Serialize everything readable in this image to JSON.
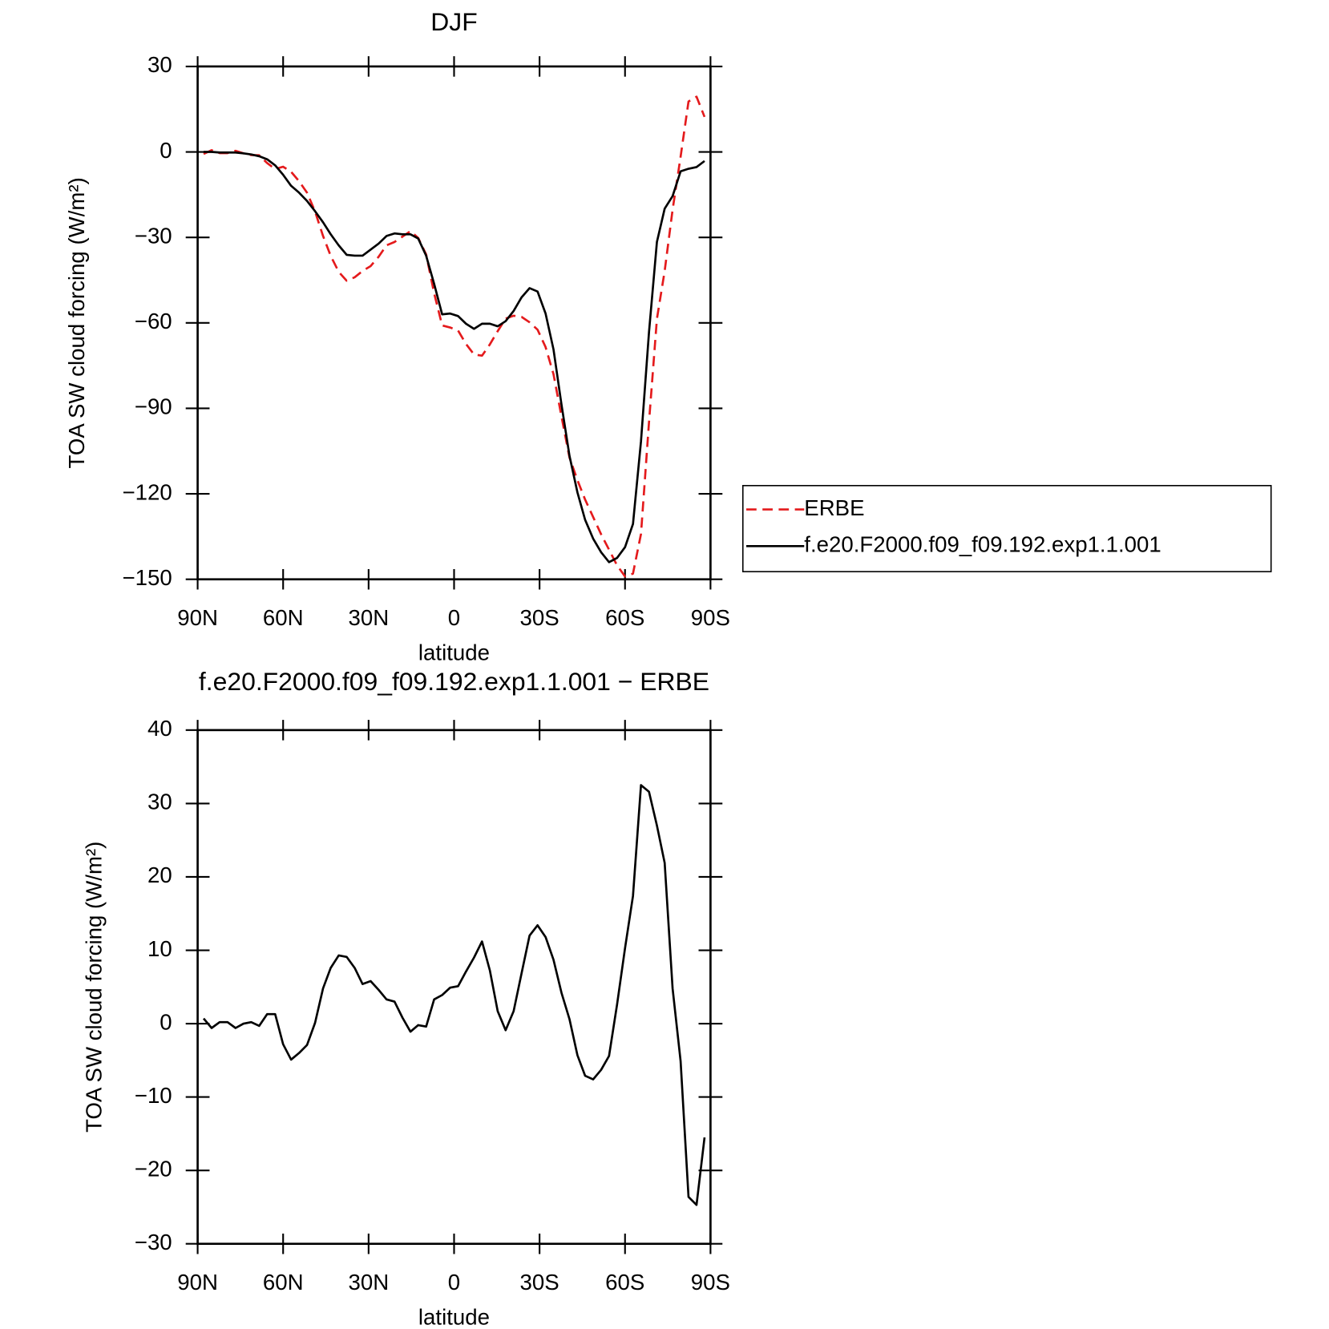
{
  "chart_data": [
    {
      "type": "line",
      "title": "DJF",
      "xlabel": "latitude",
      "ylabel": "TOA SW cloud forcing (W/m²)",
      "x": [
        87.9,
        85.1,
        82.3,
        79.5,
        76.7,
        73.9,
        71.2,
        68.4,
        65.6,
        62.8,
        60.0,
        57.2,
        54.4,
        51.6,
        48.8,
        46.0,
        43.3,
        40.5,
        37.7,
        34.9,
        32.1,
        29.3,
        26.5,
        23.7,
        20.9,
        18.1,
        15.3,
        12.6,
        9.8,
        7.0,
        4.2,
        1.4,
        -1.4,
        -4.2,
        -7.0,
        -9.8,
        -12.6,
        -15.3,
        -18.1,
        -20.9,
        -23.7,
        -26.5,
        -29.3,
        -32.1,
        -34.9,
        -37.7,
        -40.5,
        -43.3,
        -46.0,
        -48.8,
        -51.6,
        -54.4,
        -57.2,
        -60.0,
        -62.8,
        -65.6,
        -68.4,
        -71.2,
        -73.9,
        -76.7,
        -79.5,
        -82.3,
        -85.1,
        -87.9
      ],
      "series": [
        {
          "name": "ERBE",
          "color": "#e41a1c",
          "dash": true,
          "values": [
            -0.7,
            0.6,
            -0.4,
            -0.4,
            0.4,
            -0.5,
            -1.1,
            -1.2,
            -3.9,
            -6.0,
            -5.2,
            -7.0,
            -10.3,
            -14.3,
            -20.9,
            -29.5,
            -36.5,
            -42.1,
            -45.2,
            -44.0,
            -41.8,
            -40.1,
            -36.8,
            -32.8,
            -31.6,
            -29.7,
            -27.8,
            -30.2,
            -36.0,
            -49.6,
            -60.9,
            -61.6,
            -62.7,
            -67.4,
            -71.1,
            -71.5,
            -67.5,
            -62.9,
            -58.5,
            -57.5,
            -57.9,
            -59.8,
            -62.4,
            -68.5,
            -78.0,
            -92.9,
            -107.3,
            -115.2,
            -122.0,
            -128.1,
            -134.2,
            -139.6,
            -145.1,
            -149.0,
            -148.0,
            -134.1,
            -94.9,
            -58.6,
            -41.8,
            -20.3,
            -1.7,
            17.7,
            19.4,
            12.3
          ]
        },
        {
          "name": "f.e20.F2000.f09_f09.192.exp1.1.001",
          "color": "#000000",
          "dash": false,
          "values": [
            0,
            0,
            -0.2,
            -0.2,
            -0.2,
            -0.5,
            -0.9,
            -1.5,
            -2.6,
            -4.7,
            -8.0,
            -11.9,
            -14.3,
            -17.2,
            -20.8,
            -24.7,
            -28.9,
            -32.8,
            -36.1,
            -36.4,
            -36.4,
            -34.3,
            -32.2,
            -29.5,
            -28.6,
            -28.9,
            -28.9,
            -30.4,
            -36.4,
            -46.3,
            -57.0,
            -56.7,
            -57.6,
            -60.3,
            -62.1,
            -60.3,
            -60.3,
            -61.2,
            -59.4,
            -55.8,
            -51.0,
            -47.8,
            -49.0,
            -56.7,
            -69.3,
            -88.7,
            -106.7,
            -119.5,
            -129.1,
            -135.7,
            -140.5,
            -144.0,
            -142.5,
            -138.7,
            -130.6,
            -101.6,
            -63.3,
            -31.6,
            -19.9,
            -15.5,
            -6.8,
            -5.9,
            -5.3,
            -3.2
          ]
        }
      ],
      "xlim": [
        90,
        -90
      ],
      "xticks": [
        {
          "value": 90,
          "label": "90N"
        },
        {
          "value": 60,
          "label": "60N"
        },
        {
          "value": 30,
          "label": "30N"
        },
        0,
        {
          "value": -30,
          "label": "30S"
        },
        {
          "value": -60,
          "label": "60S"
        },
        {
          "value": -90,
          "label": "90S"
        }
      ],
      "ylim": [
        -150,
        30
      ],
      "yticks": [
        30,
        0,
        {
          "value": -30,
          "label": "−30"
        },
        {
          "value": -60,
          "label": "−60"
        },
        {
          "value": -90,
          "label": "−90"
        },
        {
          "value": -120,
          "label": "−120"
        },
        {
          "value": -150,
          "label": "−150"
        }
      ],
      "legend": "right"
    },
    {
      "type": "line",
      "title": "f.e20.F2000.f09_f09.192.exp1.1.001 − ERBE",
      "xlabel": "latitude",
      "ylabel": "TOA SW cloud forcing (W/m²)",
      "x": [
        87.9,
        85.1,
        82.3,
        79.5,
        76.7,
        73.9,
        71.2,
        68.4,
        65.6,
        62.8,
        60.0,
        57.2,
        54.4,
        51.6,
        48.8,
        46.0,
        43.3,
        40.5,
        37.7,
        34.9,
        32.1,
        29.3,
        26.5,
        23.7,
        20.9,
        18.1,
        15.3,
        12.6,
        9.8,
        7.0,
        4.2,
        1.4,
        -1.4,
        -4.2,
        -7.0,
        -9.8,
        -12.6,
        -15.3,
        -18.1,
        -20.9,
        -23.7,
        -26.5,
        -29.3,
        -32.1,
        -34.9,
        -37.7,
        -40.5,
        -43.3,
        -46.0,
        -48.8,
        -51.6,
        -54.4,
        -57.2,
        -60.0,
        -62.8,
        -65.6,
        -68.4,
        -71.2,
        -73.9,
        -76.7,
        -79.5,
        -82.3,
        -85.1,
        -87.9
      ],
      "series": [
        {
          "color": "#000000",
          "dash": false,
          "values": [
            0.7,
            -0.6,
            0.2,
            0.2,
            -0.6,
            0,
            0.2,
            -0.3,
            1.3,
            1.3,
            -2.8,
            -4.9,
            -4.0,
            -2.9,
            0.1,
            4.8,
            7.6,
            9.3,
            9.1,
            7.6,
            5.4,
            5.8,
            4.6,
            3.3,
            3.0,
            0.8,
            -1.1,
            -0.2,
            -0.4,
            3.3,
            3.9,
            4.9,
            5.1,
            7.1,
            9.0,
            11.2,
            7.2,
            1.7,
            -0.9,
            1.7,
            6.9,
            12.0,
            13.4,
            11.8,
            8.7,
            4.2,
            0.6,
            -4.3,
            -7.1,
            -7.6,
            -6.3,
            -4.4,
            2.6,
            10.3,
            17.4,
            32.5,
            31.6,
            27.0,
            21.9,
            4.8,
            -5.1,
            -23.6,
            -24.7,
            -15.5
          ]
        }
      ],
      "xlim": [
        90,
        -90
      ],
      "xticks": [
        {
          "value": 90,
          "label": "90N"
        },
        {
          "value": 60,
          "label": "60N"
        },
        {
          "value": 30,
          "label": "30N"
        },
        0,
        {
          "value": -30,
          "label": "30S"
        },
        {
          "value": -60,
          "label": "60S"
        },
        {
          "value": -90,
          "label": "90S"
        }
      ],
      "ylim": [
        -30,
        40
      ],
      "yticks": [
        40,
        30,
        20,
        10,
        0,
        {
          "value": -10,
          "label": "−10"
        },
        {
          "value": -20,
          "label": "−20"
        },
        {
          "value": -30,
          "label": "−30"
        }
      ]
    }
  ]
}
